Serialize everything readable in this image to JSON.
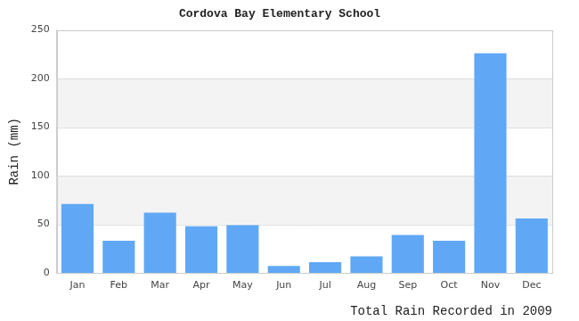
{
  "chart_data": {
    "type": "bar",
    "title": "Cordova Bay Elementary School",
    "y_label": "Rain (mm)",
    "x_label": "Total Rain Recorded in 2009",
    "categories": [
      "Jan",
      "Feb",
      "Mar",
      "Apr",
      "May",
      "Jun",
      "Jul",
      "Aug",
      "Sep",
      "Oct",
      "Nov",
      "Dec"
    ],
    "values": [
      71,
      33,
      62,
      48,
      49,
      7,
      11,
      17,
      39,
      33,
      226,
      56
    ],
    "color": "#60a8f5",
    "ylim": [
      0,
      250
    ],
    "yticks": [
      0,
      50,
      100,
      150,
      200,
      250
    ],
    "grid": true
  }
}
